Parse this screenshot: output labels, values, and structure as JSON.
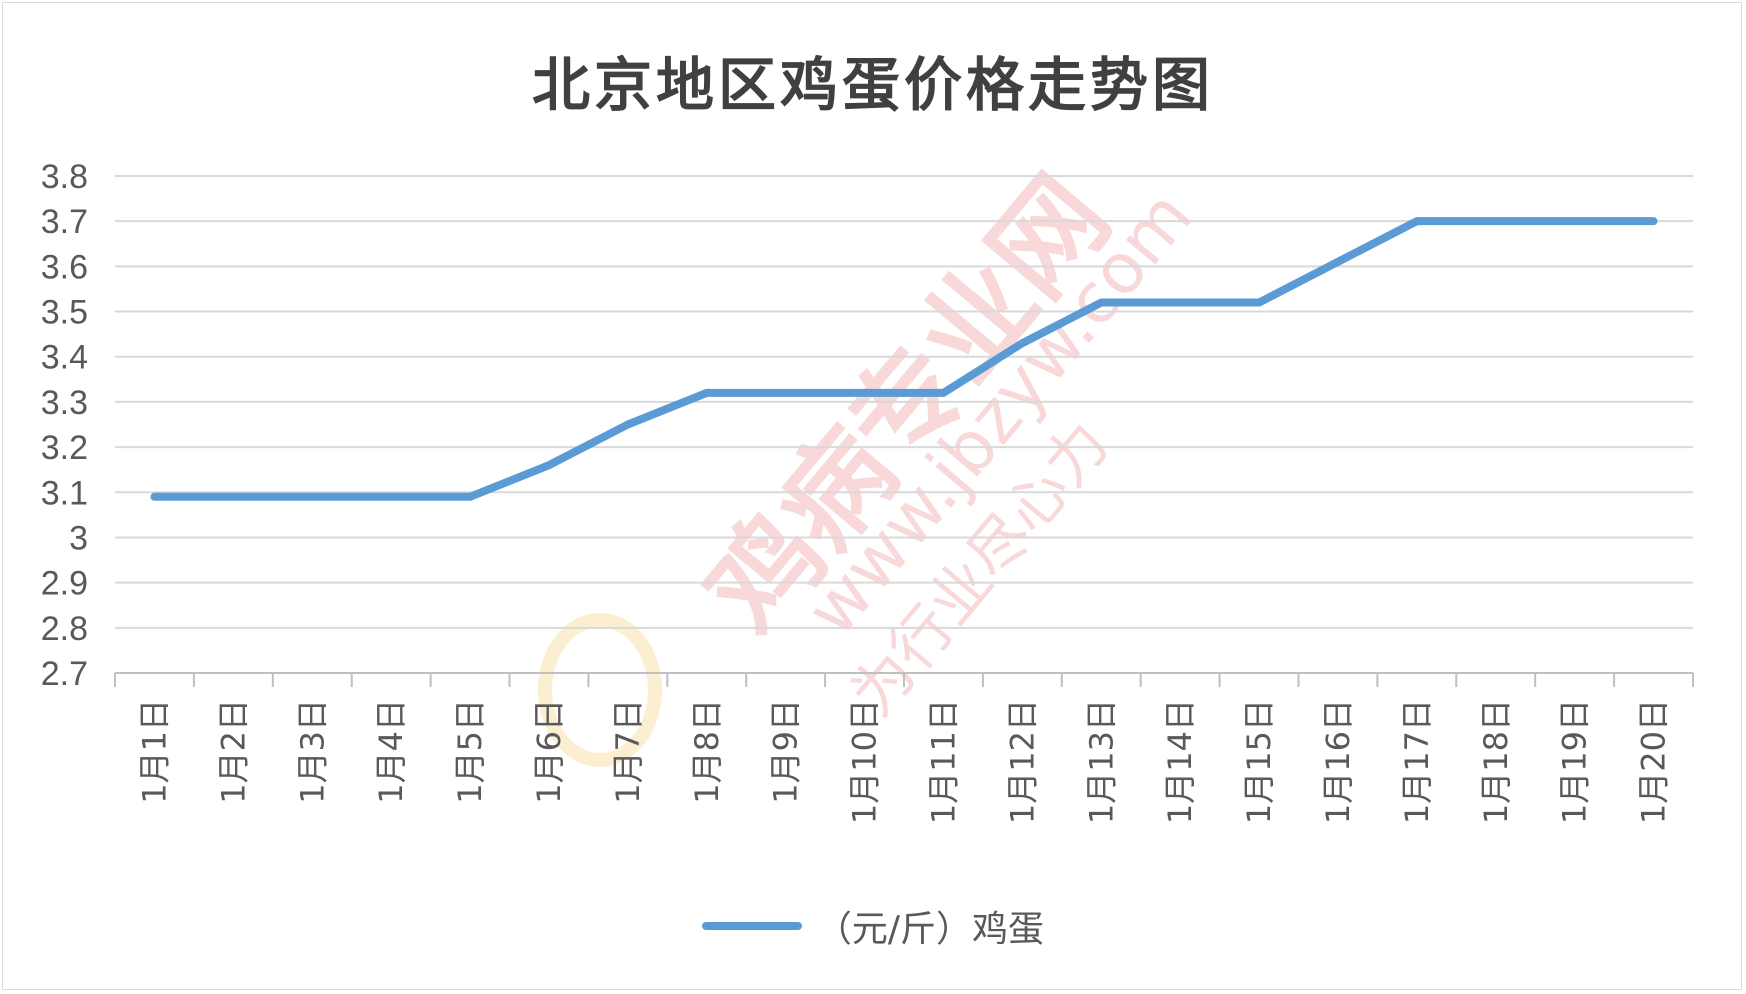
{
  "chart_data": {
    "type": "line",
    "title": "北京地区鸡蛋价格走势图",
    "categories": [
      "1月1日",
      "1月2日",
      "1月3日",
      "1月4日",
      "1月5日",
      "1月6日",
      "1月7日",
      "1月8日",
      "1月9日",
      "1月10日",
      "1月11日",
      "1月12日",
      "1月13日",
      "1月14日",
      "1月15日",
      "1月16日",
      "1月17日",
      "1月18日",
      "1月19日",
      "1月20日"
    ],
    "series": [
      {
        "name": "（元/斤）鸡蛋",
        "color": "#5b9bd5",
        "values": [
          3.09,
          3.09,
          3.09,
          3.09,
          3.09,
          3.16,
          3.25,
          3.32,
          3.32,
          3.32,
          3.32,
          3.43,
          3.52,
          3.52,
          3.52,
          3.61,
          3.7,
          3.7,
          3.7,
          3.7
        ]
      }
    ],
    "ylim": [
      2.7,
      3.8
    ],
    "yticks": [
      "3.8",
      "3.7",
      "3.6",
      "3.5",
      "3.4",
      "3.3",
      "3.2",
      "3.1",
      "3",
      "2.9",
      "2.8",
      "2.7"
    ],
    "grid": true,
    "legend_position": "bottom"
  },
  "watermark": {
    "text": "鸡病专业网",
    "url": "www.jbzyw.com",
    "slogan": "为行业尽心力"
  }
}
